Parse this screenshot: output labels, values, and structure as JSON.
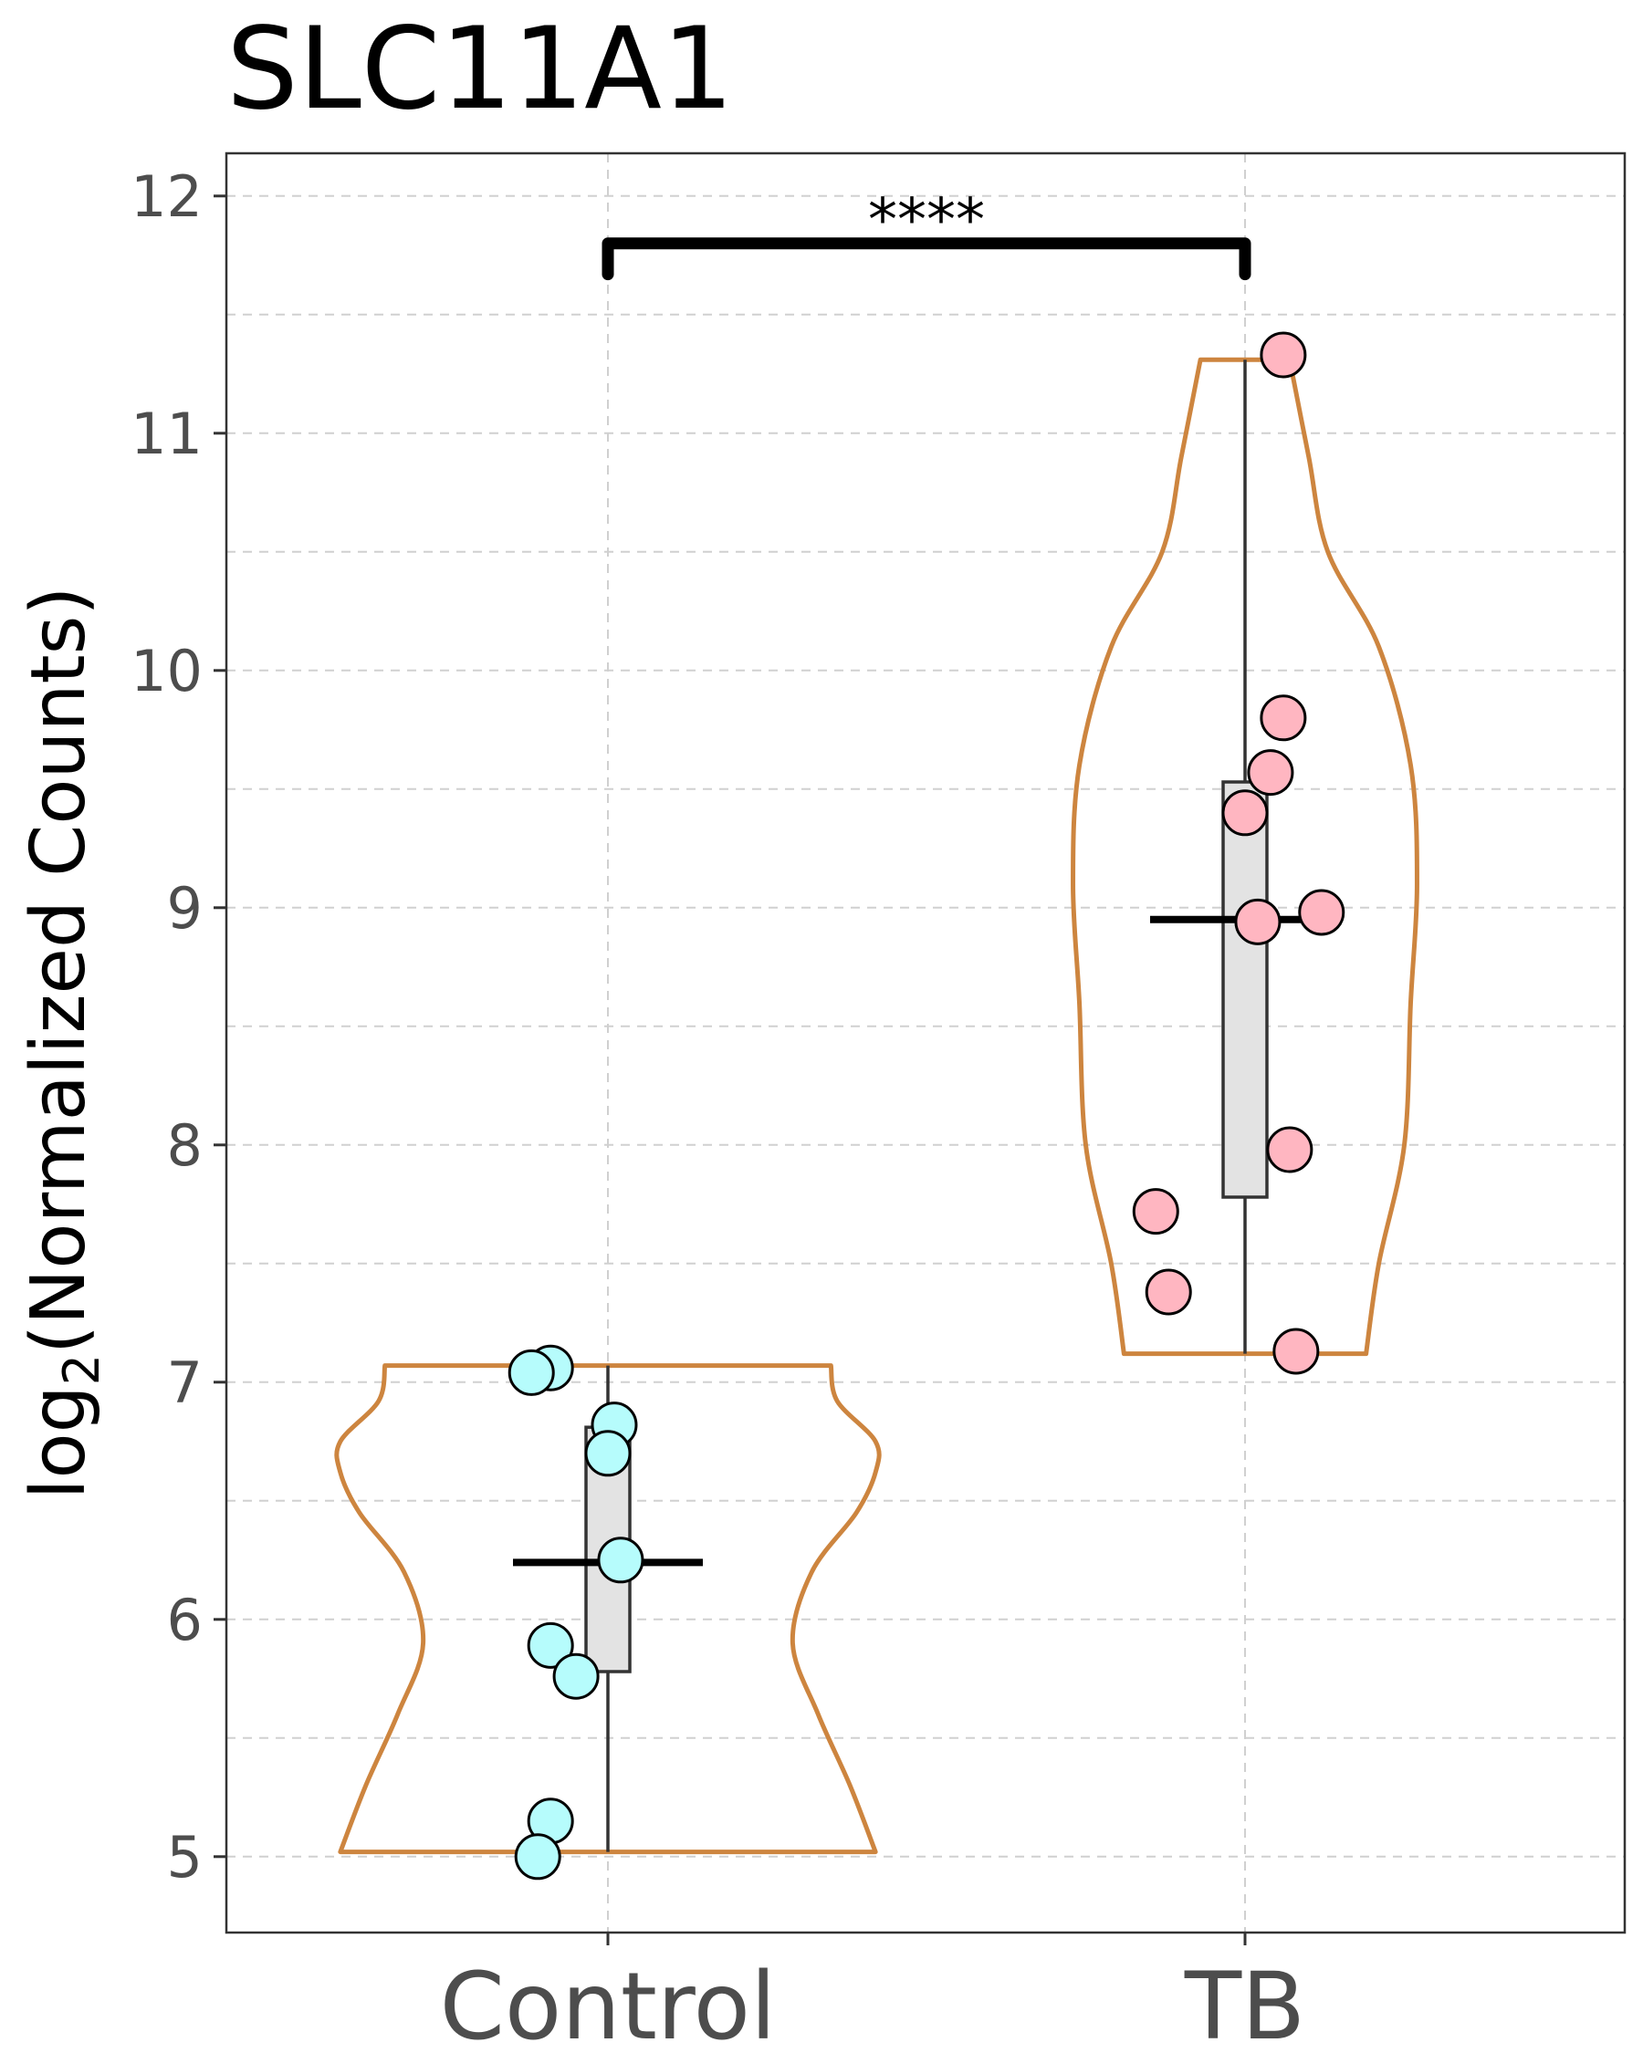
{
  "chart_data": {
    "type": "violin",
    "title": "SLC11A1",
    "xlabel": "",
    "ylabel": {
      "prefix": "log",
      "subscript": "2",
      "suffix": "(Normalized Counts)"
    },
    "ylim": [
      4.68,
      12.18
    ],
    "y_ticks": [
      5,
      6,
      7,
      8,
      9,
      10,
      11,
      12
    ],
    "y_tick_labels": [
      "5",
      "6",
      "7",
      "8",
      "9",
      "10",
      "11",
      "12"
    ],
    "categories": [
      "Control",
      "TB"
    ],
    "grid": true,
    "significance": {
      "label": "****",
      "from": "Control",
      "to": "TB",
      "y": 11.8,
      "tip_bottom": 11.67
    },
    "colors": {
      "violin_outline": "#cd853f",
      "box_fill": "#e3e3e3",
      "Control": "#b6fcfc",
      "TB": "#ffb6c1"
    },
    "groups": [
      {
        "name": "Control",
        "ymin": 5.02,
        "ymax": 7.07,
        "box": {
          "q1": 5.78,
          "q3": 6.81,
          "min": 5.02,
          "max": 7.07
        },
        "mean": 6.24,
        "density": [
          [
            5.02,
            0.42
          ],
          [
            5.3,
            0.38
          ],
          [
            5.6,
            0.33
          ],
          [
            5.9,
            0.29
          ],
          [
            6.2,
            0.32
          ],
          [
            6.45,
            0.39
          ],
          [
            6.62,
            0.42
          ],
          [
            6.75,
            0.42
          ],
          [
            6.92,
            0.36
          ],
          [
            7.07,
            0.35
          ]
        ],
        "points": [
          {
            "y": 7.06,
            "jitter": -0.09
          },
          {
            "y": 7.04,
            "jitter": -0.12
          },
          {
            "y": 6.82,
            "jitter": 0.01
          },
          {
            "y": 6.7,
            "jitter": 0.0
          },
          {
            "y": 6.25,
            "jitter": 0.02
          },
          {
            "y": 5.89,
            "jitter": -0.09
          },
          {
            "y": 5.76,
            "jitter": -0.05
          },
          {
            "y": 5.15,
            "jitter": -0.09
          },
          {
            "y": 5.0,
            "jitter": -0.11
          }
        ]
      },
      {
        "name": "TB",
        "ymin": 7.12,
        "ymax": 11.31,
        "box": {
          "q1": 7.78,
          "q3": 9.53,
          "min": 7.12,
          "max": 11.31
        },
        "mean": 8.95,
        "density": [
          [
            7.12,
            0.19
          ],
          [
            7.5,
            0.21
          ],
          [
            8.0,
            0.25
          ],
          [
            8.6,
            0.26
          ],
          [
            9.1,
            0.27
          ],
          [
            9.6,
            0.26
          ],
          [
            10.1,
            0.21
          ],
          [
            10.5,
            0.13
          ],
          [
            10.9,
            0.1
          ],
          [
            11.31,
            0.07
          ]
        ],
        "points": [
          {
            "y": 11.33,
            "jitter": 0.06
          },
          {
            "y": 9.8,
            "jitter": 0.06
          },
          {
            "y": 9.57,
            "jitter": 0.04
          },
          {
            "y": 9.4,
            "jitter": 0.0
          },
          {
            "y": 8.98,
            "jitter": 0.12
          },
          {
            "y": 8.94,
            "jitter": 0.02
          },
          {
            "y": 7.98,
            "jitter": 0.07
          },
          {
            "y": 7.72,
            "jitter": -0.14
          },
          {
            "y": 7.38,
            "jitter": -0.12
          },
          {
            "y": 7.13,
            "jitter": 0.08
          }
        ]
      }
    ]
  }
}
